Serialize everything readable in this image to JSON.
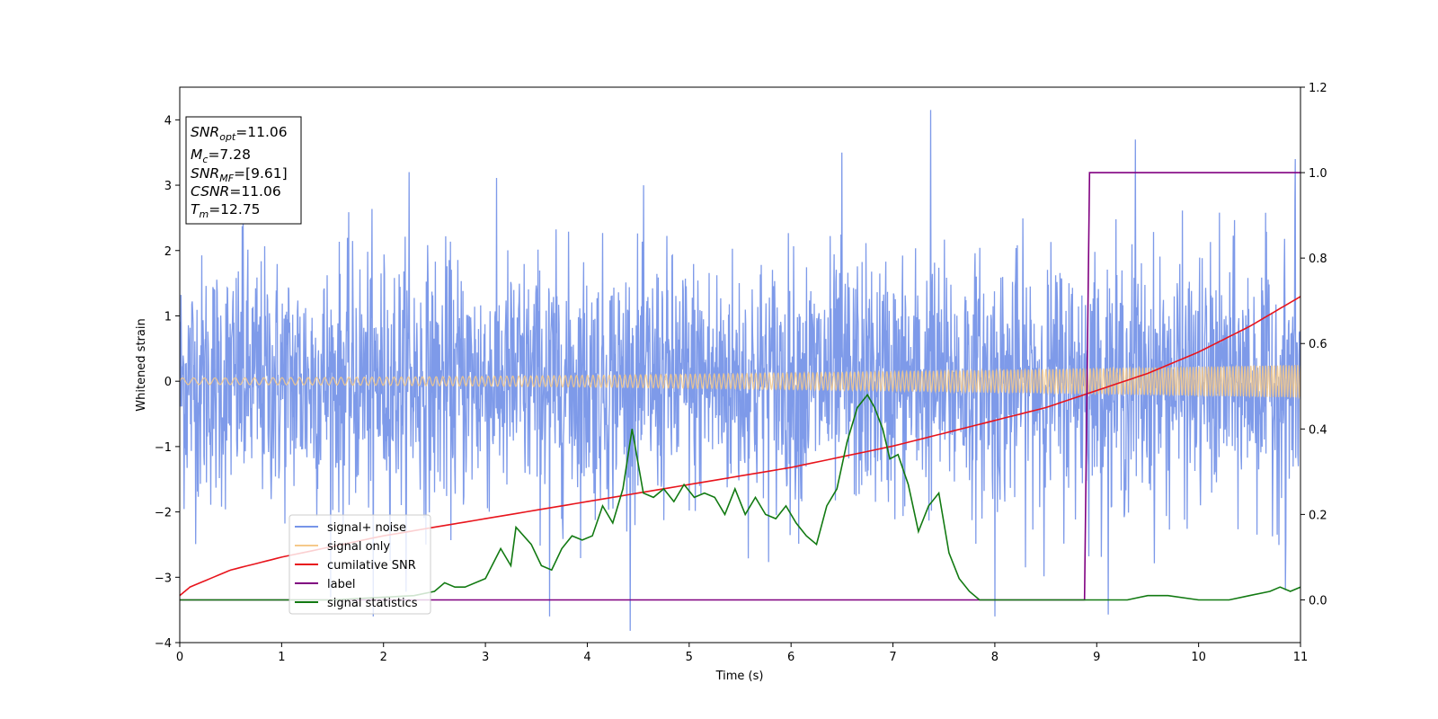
{
  "chart_data": {
    "type": "line",
    "title": "",
    "xlabel": "Time (s)",
    "ylabel": "Whitened strain",
    "xlim": [
      0,
      11
    ],
    "ylim": [
      -4,
      4.5
    ],
    "y2lim": [
      -0.1,
      1.2
    ],
    "x_ticks": [
      "0",
      "1",
      "2",
      "3",
      "4",
      "5",
      "6",
      "7",
      "8",
      "9",
      "10",
      "11"
    ],
    "x_tick_values": [
      0,
      1,
      2,
      3,
      4,
      5,
      6,
      7,
      8,
      9,
      10,
      11
    ],
    "y_ticks": [
      "−4",
      "−3",
      "−2",
      "−1",
      "0",
      "1",
      "2",
      "3",
      "4"
    ],
    "y_tick_values": [
      -4,
      -3,
      -2,
      -1,
      0,
      1,
      2,
      3,
      4
    ],
    "y2_ticks": [
      "0.0",
      "0.2",
      "0.4",
      "0.6",
      "0.8",
      "1.0",
      "1.2"
    ],
    "y2_tick_values": [
      0,
      0.2,
      0.4,
      0.6,
      0.8,
      1.0,
      1.2
    ],
    "grid": false,
    "legend_position": "lower-left",
    "colors": {
      "signal_noise": "#7795e8",
      "signal_only": "#f5c98a",
      "cumulative_snr": "#e8141c",
      "label": "#800080",
      "signal_statistics": "#127a12"
    },
    "legend": [
      {
        "name": "signal+ noise",
        "color": "#7795e8"
      },
      {
        "name": "signal only",
        "color": "#f5c98a"
      },
      {
        "name": "cumilative SNR",
        "color": "#e8141c"
      },
      {
        "name": "label",
        "color": "#800080"
      },
      {
        "name": "signal statistics",
        "color": "#127a12"
      }
    ],
    "series": [
      {
        "name": "signal+ noise",
        "axis": "left",
        "kind": "noise",
        "std": 1.0,
        "peaks": [
          [
            0.62,
            2.5
          ],
          [
            1.9,
            -3.6
          ],
          [
            2.25,
            3.2
          ],
          [
            3.63,
            -3.6
          ],
          [
            6.5,
            3.5
          ],
          [
            7.37,
            4.15
          ],
          [
            8.0,
            -3.6
          ],
          [
            9.38,
            3.7
          ],
          [
            10.85,
            -3.2
          ],
          [
            10.95,
            3.4
          ]
        ]
      },
      {
        "name": "signal only",
        "axis": "left",
        "kind": "chirp",
        "amplitude_start": 0.05,
        "amplitude_end": 0.25
      },
      {
        "name": "cumilative SNR",
        "axis": "right",
        "x": [
          0,
          0.1,
          0.5,
          1,
          2,
          3,
          4,
          5,
          6,
          7,
          8,
          8.5,
          9,
          9.5,
          10,
          10.5,
          11
        ],
        "values": [
          0.01,
          0.03,
          0.07,
          0.1,
          0.15,
          0.19,
          0.23,
          0.27,
          0.31,
          0.36,
          0.42,
          0.45,
          0.49,
          0.53,
          0.58,
          0.64,
          0.71
        ]
      },
      {
        "name": "label",
        "axis": "right",
        "x": [
          0,
          8.88,
          8.93,
          11
        ],
        "values": [
          0,
          0,
          1,
          1
        ]
      },
      {
        "name": "signal statistics",
        "axis": "right",
        "x": [
          0,
          1.5,
          2.3,
          2.5,
          2.6,
          2.7,
          2.8,
          3.0,
          3.15,
          3.25,
          3.3,
          3.45,
          3.55,
          3.65,
          3.75,
          3.85,
          3.95,
          4.05,
          4.15,
          4.25,
          4.35,
          4.44,
          4.55,
          4.65,
          4.75,
          4.85,
          4.95,
          5.05,
          5.15,
          5.25,
          5.35,
          5.45,
          5.55,
          5.65,
          5.75,
          5.85,
          5.95,
          6.05,
          6.15,
          6.25,
          6.35,
          6.45,
          6.55,
          6.65,
          6.75,
          6.82,
          6.9,
          6.97,
          7.05,
          7.15,
          7.25,
          7.35,
          7.45,
          7.55,
          7.65,
          7.75,
          7.85,
          8.0,
          8.88,
          9.3,
          9.5,
          9.7,
          10.0,
          10.3,
          10.5,
          10.7,
          10.8,
          10.9,
          11.0
        ],
        "values": [
          0.0,
          0.0,
          0.01,
          0.02,
          0.04,
          0.03,
          0.03,
          0.05,
          0.12,
          0.08,
          0.17,
          0.13,
          0.08,
          0.07,
          0.12,
          0.15,
          0.14,
          0.15,
          0.22,
          0.18,
          0.26,
          0.4,
          0.25,
          0.24,
          0.26,
          0.23,
          0.27,
          0.24,
          0.25,
          0.24,
          0.2,
          0.26,
          0.2,
          0.24,
          0.2,
          0.19,
          0.22,
          0.18,
          0.15,
          0.13,
          0.22,
          0.26,
          0.37,
          0.45,
          0.48,
          0.45,
          0.4,
          0.33,
          0.34,
          0.27,
          0.16,
          0.22,
          0.25,
          0.11,
          0.05,
          0.02,
          0.0,
          0.0,
          0.0,
          0.0,
          0.01,
          0.01,
          0.0,
          0.0,
          0.01,
          0.02,
          0.03,
          0.02,
          0.03
        ]
      }
    ],
    "annotation": {
      "lines": [
        {
          "var": "SNR",
          "sub": "opt",
          "rest": "=11.06"
        },
        {
          "var": "M",
          "sub": "c",
          "rest": "=7.28"
        },
        {
          "var": "SNR",
          "sub": "MF",
          "rest": "=[9.61]"
        },
        {
          "var": "CSNR",
          "sub": "",
          "rest": "=11.06"
        },
        {
          "var": "T",
          "sub": "m",
          "rest": "=12.75"
        }
      ]
    }
  }
}
